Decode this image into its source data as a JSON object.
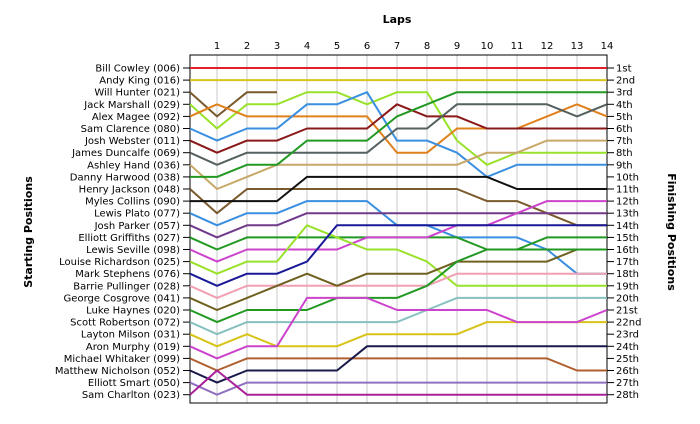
{
  "chart_data": {
    "type": "line",
    "title": "",
    "xlabel": "Laps",
    "ylabel_left": "Starting Positions",
    "ylabel_right": "Finishing Positions",
    "x": [
      1,
      2,
      3,
      4,
      5,
      6,
      7,
      8,
      9,
      10,
      11,
      12,
      13,
      14
    ],
    "ylim": [
      1,
      28
    ],
    "y_inverted": true,
    "grid": "vertical",
    "starting_labels": [
      "Bill Cowley (006)",
      "Andy King (016)",
      "Will Hunter (021)",
      "Jack Marshall (029)",
      "Alex Magee (092)",
      "Sam Clarence (080)",
      "Josh Webster (011)",
      "James Duncalfe (069)",
      "Ashley Hand (036)",
      "Danny Harwood (038)",
      "Henry Jackson (048)",
      "Myles Collins (090)",
      "Lewis Plato (077)",
      "Josh Parker (057)",
      "Elliott Griffiths (027)",
      "Lewis Seville (098)",
      "Louise Richardson (025)",
      "Mark Stephens (076)",
      "Barrie Pullinger (028)",
      "George Cosgrove (041)",
      "Luke Haynes (020)",
      "Scott Robertson (072)",
      "Layton Milson (031)",
      "Aron Murphy (019)",
      "Michael Whitaker (099)",
      "Matthew Nicholson (052)",
      "Elliott Smart (050)",
      "Sam Charlton (023)"
    ],
    "finishing_labels": [
      "1st",
      "2nd",
      "3rd",
      "4th",
      "5th",
      "6th",
      "7th",
      "8th",
      "9th",
      "10th",
      "11th",
      "12th",
      "13th",
      "14th",
      "15th",
      "16th",
      "17th",
      "18th",
      "19th",
      "20th",
      "21st",
      "22nd",
      "23rd",
      "24th",
      "25th",
      "26th",
      "27th",
      "28th"
    ],
    "series": [
      {
        "start": 1,
        "color": "#e0202a",
        "positions": [
          1,
          1,
          1,
          1,
          1,
          1,
          1,
          1,
          1,
          1,
          1,
          1,
          1,
          1
        ]
      },
      {
        "start": 2,
        "color": "#d8c418",
        "positions": [
          2,
          2,
          2,
          2,
          2,
          2,
          2,
          2,
          2,
          2,
          2,
          2,
          2,
          2
        ]
      },
      {
        "start": 3,
        "color": "#7a5a2c",
        "positions": [
          5,
          3,
          3
        ]
      },
      {
        "start": 4,
        "color": "#99e22a",
        "positions": [
          6,
          4,
          4,
          3,
          3,
          4,
          3,
          3,
          7,
          9,
          8,
          8,
          8,
          8
        ]
      },
      {
        "start": 5,
        "color": "#e0801c",
        "positions": [
          4,
          5,
          5,
          5,
          5,
          5,
          8,
          8,
          6,
          6,
          6,
          5,
          4,
          5
        ]
      },
      {
        "start": 6,
        "color": "#3a8fe0",
        "positions": [
          7,
          6,
          6,
          4,
          4,
          3,
          7,
          7,
          8,
          10,
          9,
          9,
          9,
          9
        ]
      },
      {
        "start": 7,
        "color": "#8a1818",
        "positions": [
          8,
          7,
          7,
          6,
          6,
          6,
          4,
          5,
          5,
          6,
          6,
          6,
          6,
          6
        ]
      },
      {
        "start": 8,
        "color": "#556060",
        "positions": [
          9,
          8,
          8,
          8,
          8,
          8,
          6,
          6,
          4,
          4,
          4,
          4,
          5,
          4
        ]
      },
      {
        "start": 9,
        "color": "#c8a868",
        "positions": [
          11,
          10,
          9,
          9,
          9,
          9,
          9,
          9,
          9,
          8,
          8,
          7,
          7,
          7
        ]
      },
      {
        "start": 10,
        "color": "#229922",
        "positions": [
          10,
          9,
          9,
          7,
          7,
          7,
          5,
          4,
          3,
          3,
          3,
          3,
          3,
          3
        ]
      },
      {
        "start": 11,
        "color": "#7a5a2c",
        "positions": [
          13,
          11,
          11,
          11,
          11,
          11,
          11,
          11,
          11,
          12,
          12,
          13,
          14,
          14
        ]
      },
      {
        "start": 12,
        "color": "#111111",
        "positions": [
          12,
          12,
          12,
          10,
          10,
          10,
          10,
          10,
          10,
          10,
          11,
          11,
          11,
          11
        ]
      },
      {
        "start": 13,
        "color": "#3a8fe0",
        "positions": [
          14,
          13,
          13,
          12,
          12,
          12,
          14,
          14,
          15,
          15,
          15,
          16,
          18,
          18
        ]
      },
      {
        "start": 14,
        "color": "#703a8a",
        "positions": [
          15,
          14,
          14,
          13,
          13,
          13,
          13,
          13,
          13,
          13,
          13,
          13,
          13,
          13
        ]
      },
      {
        "start": 15,
        "color": "#229922",
        "positions": [
          16,
          15,
          15,
          15,
          15,
          15,
          15,
          15,
          15,
          16,
          16,
          15,
          15,
          15
        ]
      },
      {
        "start": 16,
        "color": "#cc44cc",
        "positions": [
          17,
          16,
          16,
          16,
          16,
          15,
          15,
          15,
          14,
          14,
          13,
          12,
          12,
          12
        ]
      },
      {
        "start": 17,
        "color": "#99e22a",
        "positions": [
          18,
          17,
          17,
          14,
          15,
          16,
          16,
          17,
          19,
          19,
          19,
          19,
          19,
          19
        ]
      },
      {
        "start": 18,
        "color": "#1a1a99",
        "positions": [
          19,
          18,
          18,
          17,
          14,
          14,
          14,
          14,
          14,
          14,
          14,
          14,
          14,
          14
        ]
      },
      {
        "start": 19,
        "color": "#f0a0b0",
        "positions": [
          20,
          19,
          19,
          19,
          19,
          19,
          19,
          19,
          18,
          18,
          18,
          18,
          18,
          18
        ]
      },
      {
        "start": 20,
        "color": "#706020",
        "positions": [
          21,
          20,
          19,
          18,
          19,
          18,
          18,
          18,
          17,
          17,
          17,
          17,
          16,
          16
        ]
      },
      {
        "start": 21,
        "color": "#229922",
        "positions": [
          22,
          21,
          21,
          21,
          20,
          20,
          20,
          19,
          17,
          16,
          16,
          16,
          16,
          16
        ]
      },
      {
        "start": 22,
        "color": "#88c0c0",
        "positions": [
          23,
          22,
          22,
          22,
          22,
          22,
          22,
          21,
          20,
          20,
          20,
          20,
          20,
          20
        ]
      },
      {
        "start": 23,
        "color": "#d8c418",
        "positions": [
          24,
          23,
          24,
          24,
          24,
          23,
          23,
          23,
          23,
          22,
          22,
          22,
          22,
          22
        ]
      },
      {
        "start": 24,
        "color": "#cc44cc",
        "positions": [
          25,
          24,
          24,
          20,
          20,
          20,
          21,
          21,
          21,
          21,
          22,
          22,
          22,
          21
        ]
      },
      {
        "start": 25,
        "color": "#b06030",
        "positions": [
          26,
          25,
          25,
          25,
          25,
          25,
          25,
          25,
          25,
          25,
          25,
          25,
          26,
          26
        ]
      },
      {
        "start": 26,
        "color": "#1a1a4a",
        "positions": [
          27,
          26,
          26,
          26,
          26,
          24,
          24,
          24,
          24,
          24,
          24,
          24,
          24,
          24
        ]
      },
      {
        "start": 27,
        "color": "#9070c0",
        "positions": [
          28,
          27,
          27,
          27,
          27,
          27,
          27,
          27,
          27,
          27,
          27,
          27,
          27,
          27
        ]
      },
      {
        "start": 28,
        "color": "#aa2299",
        "positions": [
          26,
          28,
          28,
          28,
          28,
          28,
          28,
          28,
          28,
          28,
          28,
          28,
          28,
          28
        ]
      }
    ]
  }
}
